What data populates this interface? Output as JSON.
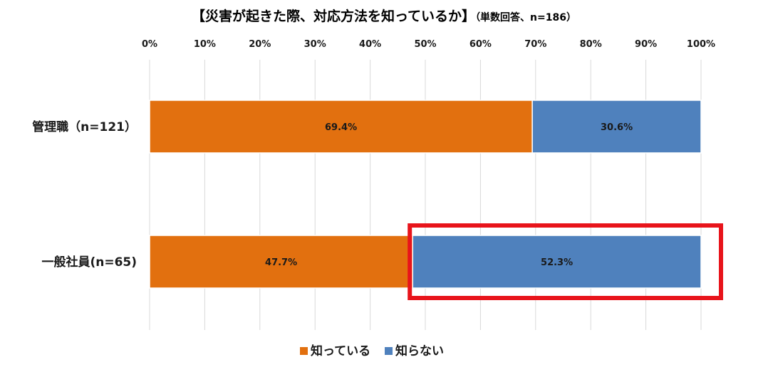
{
  "chart_data": {
    "type": "bar",
    "orientation": "horizontal",
    "stacked": "percent",
    "title": "【災害が起きた際、対応方法を知っているか】",
    "subtitle": "（単数回答、n=186）",
    "categories": [
      "管理職（n=121）",
      "一般社員(n=65)"
    ],
    "series": [
      {
        "name": "知っている",
        "values": [
          69.4,
          47.7
        ],
        "labels": [
          "69.4%",
          "47.7%"
        ],
        "color": "#E2700F"
      },
      {
        "name": "知らない",
        "values": [
          30.6,
          52.3
        ],
        "labels": [
          "30.6%",
          "52.3%"
        ],
        "color": "#4F81BD"
      }
    ],
    "xlim": [
      0,
      100
    ],
    "xticks": [
      "0%",
      "10%",
      "20%",
      "30%",
      "40%",
      "50%",
      "60%",
      "70%",
      "80%",
      "90%",
      "100%"
    ],
    "grid": true,
    "legend": "bottom",
    "highlight": {
      "category_index": 1,
      "series_index": 1,
      "color": "#E8141B"
    }
  }
}
